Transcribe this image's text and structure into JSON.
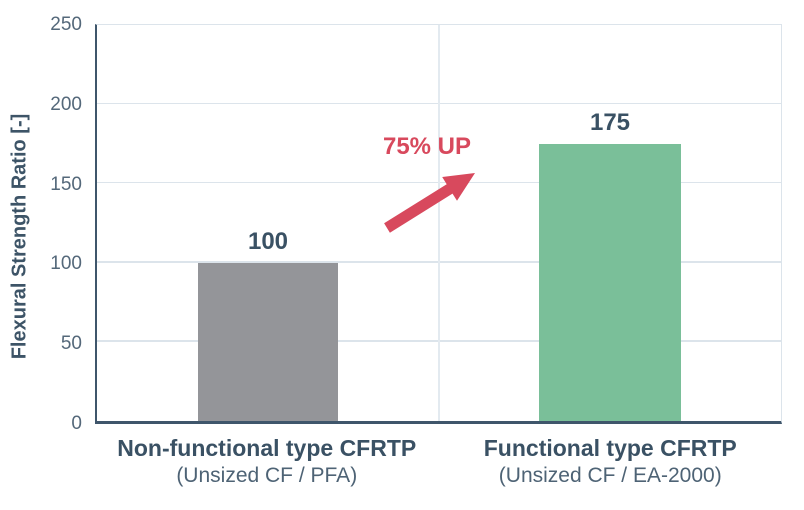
{
  "chart_data": {
    "type": "bar",
    "title": "",
    "xlabel": "",
    "ylabel": "Flexural Strength Ratio [-]",
    "ylim": [
      0,
      250
    ],
    "yticks": [
      0,
      50,
      100,
      150,
      200,
      250
    ],
    "grid": true,
    "legend": false,
    "categories": [
      {
        "line1": "Non-functional type CFRTP",
        "line2": "(Unsized CF / PFA)"
      },
      {
        "line1": "Functional type CFRTP",
        "line2": "(Unsized CF / EA-2000)"
      }
    ],
    "values": [
      100,
      175
    ],
    "value_labels": [
      "100",
      "175"
    ],
    "bar_colors": [
      "#949599",
      "#7abf99"
    ],
    "annotation": {
      "text": "75% UP",
      "color": "#d8495d"
    }
  },
  "colors": {
    "axis": "#3f566b",
    "tick_text": "#54687a",
    "label_text": "#3a5164",
    "gridline": "#dce4eb",
    "bar_gray": "#949599",
    "bar_green": "#7abf99",
    "accent_red": "#d8495d",
    "background": "#ffffff"
  }
}
